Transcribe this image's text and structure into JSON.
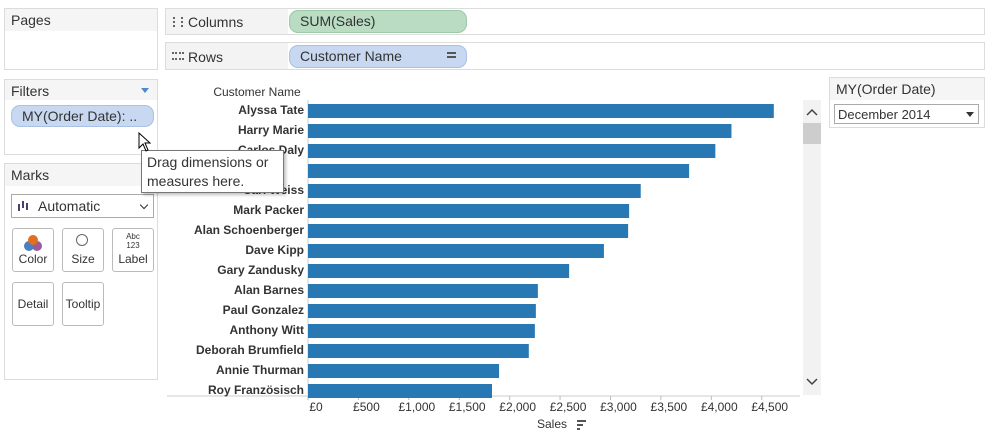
{
  "pages": {
    "title": "Pages"
  },
  "shelves": {
    "columns_label": "Columns",
    "columns_pill": "SUM(Sales)",
    "rows_label": "Rows",
    "rows_pill": "Customer Name"
  },
  "filters": {
    "title": "Filters",
    "pill": "MY(Order Date): .."
  },
  "marks": {
    "title": "Marks",
    "type": "Automatic",
    "label_icon": [
      "Abc",
      "123"
    ],
    "buttons": [
      "Color",
      "Size",
      "Label",
      "Detail",
      "Tooltip"
    ]
  },
  "tooltip": "Drag dimensions or measures here.",
  "quick_filter": {
    "title": "MY(Order Date)",
    "value": "December 2014"
  },
  "chart_data": {
    "type": "bar",
    "orientation": "horizontal",
    "row_header": "Customer Name",
    "x_label": "Sales",
    "color": "#2878b4",
    "grid": false,
    "categories": [
      "Alyssa Tate",
      "Harry Marie",
      "Carlos Daly",
      null,
      "Carl Weiss",
      "Mark Packer",
      "Alan Schoenberger",
      "Dave Kipp",
      "Gary Zandusky",
      "Alan Barnes",
      "Paul Gonzalez",
      "Anthony Witt",
      "Deborah Brumfield",
      "Annie Thurman",
      "Roy Französisch"
    ],
    "values": [
      4620,
      4200,
      4040,
      3780,
      3300,
      3185,
      3175,
      2935,
      2590,
      2280,
      2260,
      2250,
      2190,
      1895,
      1825
    ],
    "xlim": [
      0,
      4850
    ],
    "xticks": [
      {
        "value": 0,
        "label": "£0"
      },
      {
        "value": 500,
        "label": "£500"
      },
      {
        "value": 1000,
        "label": "£1,000"
      },
      {
        "value": 1500,
        "label": "£1,500"
      },
      {
        "value": 2000,
        "label": "£2,000"
      },
      {
        "value": 2500,
        "label": "£2,500"
      },
      {
        "value": 3000,
        "label": "£3,000"
      },
      {
        "value": 3500,
        "label": "£3,500"
      },
      {
        "value": 4000,
        "label": "£4,000"
      },
      {
        "value": 4500,
        "label": "£4,500"
      }
    ]
  }
}
